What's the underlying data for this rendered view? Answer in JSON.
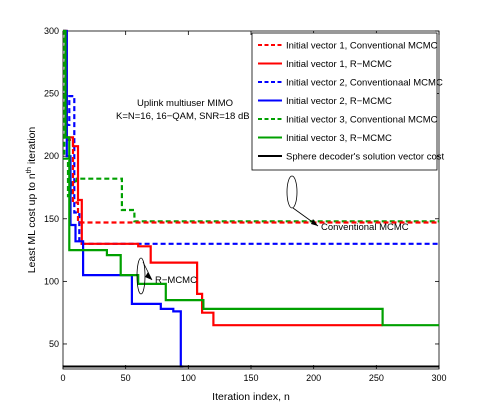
{
  "chart_data": {
    "type": "line",
    "xlabel": "Iteration index, n",
    "ylabel_parts": [
      "Least ML cost up to n",
      "th",
      " iteration"
    ],
    "xlim": [
      0,
      300
    ],
    "ylim": [
      30,
      300
    ],
    "xticks": [
      0,
      50,
      100,
      150,
      200,
      250,
      300
    ],
    "yticks": [
      50,
      100,
      150,
      200,
      250,
      300
    ],
    "grid": false,
    "legend_position": "top-right",
    "annotations": {
      "system_line1": "Uplink multiuser MIMO",
      "system_line2": "K=N=16, 16−QAM, SNR=18 dB",
      "conventional_label": "Conventional MCMC",
      "rmcmc_label": "R−MCMC"
    },
    "series": [
      {
        "name": "Initial vector 1, Conventional MCMC",
        "color": "#ff0000",
        "dash": "dashed",
        "points": [
          [
            0,
            300
          ],
          [
            2,
            300
          ],
          [
            2,
            213
          ],
          [
            8,
            213
          ],
          [
            8,
            163
          ],
          [
            12,
            163
          ],
          [
            12,
            147
          ],
          [
            300,
            147
          ]
        ]
      },
      {
        "name": "Initial vector 1, R−MCMC",
        "color": "#ff0000",
        "dash": "solid",
        "points": [
          [
            0,
            300
          ],
          [
            3,
            300
          ],
          [
            3,
            215
          ],
          [
            8,
            215
          ],
          [
            8,
            208
          ],
          [
            12,
            208
          ],
          [
            12,
            165
          ],
          [
            15,
            165
          ],
          [
            15,
            130
          ],
          [
            60,
            130
          ],
          [
            60,
            128
          ],
          [
            70,
            128
          ],
          [
            70,
            115
          ],
          [
            107,
            115
          ],
          [
            107,
            90
          ],
          [
            111,
            90
          ],
          [
            111,
            75
          ],
          [
            120,
            75
          ],
          [
            120,
            65
          ],
          [
            255,
            65
          ]
        ]
      },
      {
        "name": "Initial vector 2, Conventionaal MCMC",
        "color": "#0000ff",
        "dash": "dashed",
        "points": [
          [
            0,
            300
          ],
          [
            2,
            300
          ],
          [
            2,
            225
          ],
          [
            5,
            225
          ],
          [
            5,
            248
          ],
          [
            9,
            248
          ],
          [
            9,
            155
          ],
          [
            13,
            155
          ],
          [
            13,
            130
          ],
          [
            300,
            130
          ]
        ]
      },
      {
        "name": "Initial vector 2, R−MCMC",
        "color": "#0000ff",
        "dash": "solid",
        "points": [
          [
            0,
            300
          ],
          [
            3,
            300
          ],
          [
            3,
            200
          ],
          [
            6,
            200
          ],
          [
            6,
            145
          ],
          [
            10,
            145
          ],
          [
            10,
            132
          ],
          [
            16,
            132
          ],
          [
            16,
            105
          ],
          [
            55,
            105
          ],
          [
            55,
            82
          ],
          [
            78,
            82
          ],
          [
            78,
            78
          ],
          [
            88,
            78
          ],
          [
            88,
            76
          ],
          [
            94,
            76
          ],
          [
            94,
            32
          ],
          [
            96,
            32
          ]
        ]
      },
      {
        "name": "Initial vector 3, Conventional MCMC",
        "color": "#00a000",
        "dash": "dashed",
        "points": [
          [
            0,
            300
          ],
          [
            1,
            300
          ],
          [
            1,
            198
          ],
          [
            4,
            198
          ],
          [
            4,
            168
          ],
          [
            7,
            168
          ],
          [
            7,
            180
          ],
          [
            11,
            180
          ],
          [
            11,
            182
          ],
          [
            47,
            182
          ],
          [
            47,
            157
          ],
          [
            57,
            157
          ],
          [
            57,
            148
          ],
          [
            300,
            148
          ]
        ]
      },
      {
        "name": "Initial vector 3, R−MCMC",
        "color": "#00a000",
        "dash": "solid",
        "points": [
          [
            0,
            300
          ],
          [
            2,
            300
          ],
          [
            2,
            215
          ],
          [
            5,
            215
          ],
          [
            5,
            125
          ],
          [
            35,
            125
          ],
          [
            35,
            121
          ],
          [
            46,
            121
          ],
          [
            46,
            105
          ],
          [
            60,
            105
          ],
          [
            60,
            98
          ],
          [
            82,
            98
          ],
          [
            82,
            85
          ],
          [
            112,
            85
          ],
          [
            112,
            78
          ],
          [
            255,
            78
          ],
          [
            255,
            65
          ],
          [
            300,
            65
          ]
        ]
      },
      {
        "name": "Sphere decoder's solution vector cost",
        "color": "#000000",
        "dash": "solid",
        "points": [
          [
            0,
            32
          ],
          [
            300,
            32
          ]
        ]
      }
    ]
  }
}
